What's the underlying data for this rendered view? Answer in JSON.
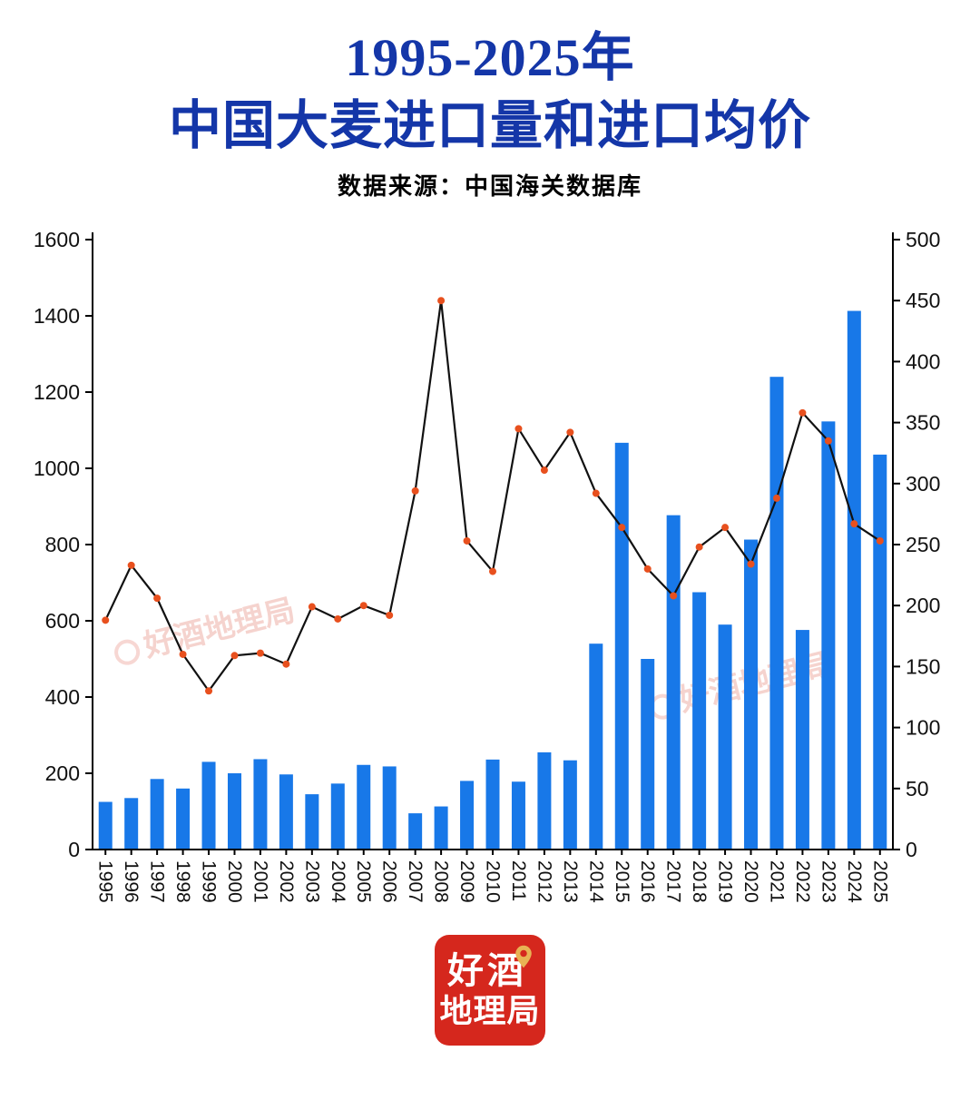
{
  "header": {
    "title_line1": "1995-2025年",
    "title_line2": "中国大麦进口量和进口均价",
    "subtitle": "数据来源：中国海关数据库"
  },
  "watermark": {
    "text": "好酒地理局"
  },
  "logo": {
    "line1": "好酒",
    "line2": "地理局"
  },
  "chart_data": {
    "type": "bar",
    "subtype": "bar+line dual axis",
    "title": "1995-2025年中国大麦进口量和进口均价",
    "categories": [
      "1995",
      "1996",
      "1997",
      "1998",
      "1999",
      "2000",
      "2001",
      "2002",
      "2003",
      "2004",
      "2005",
      "2006",
      "2007",
      "2008",
      "2009",
      "2010",
      "2011",
      "2012",
      "2013",
      "2014",
      "2015",
      "2016",
      "2017",
      "2018",
      "2019",
      "2020",
      "2021",
      "2022",
      "2023",
      "2024",
      "2025"
    ],
    "series": [
      {
        "name": "进口量",
        "type": "bar",
        "axis": "left",
        "color": "#1878E8",
        "values": [
          125,
          135,
          185,
          160,
          230,
          200,
          237,
          197,
          145,
          173,
          222,
          218,
          95,
          113,
          180,
          236,
          178,
          255,
          234,
          540,
          1067,
          500,
          877,
          675,
          590,
          813,
          1240,
          576,
          1123,
          1413,
          1036
        ]
      },
      {
        "name": "进口均价",
        "type": "line",
        "axis": "right",
        "color": "#111111",
        "marker_color": "#E8501E",
        "values": [
          188,
          233,
          206,
          160,
          130,
          159,
          161,
          152,
          199,
          189,
          200,
          192,
          294,
          450,
          253,
          228,
          345,
          311,
          342,
          292,
          264,
          230,
          208,
          248,
          264,
          234,
          288,
          358,
          335,
          267,
          253
        ]
      }
    ],
    "left_axis": {
      "min": 0,
      "max": 1600,
      "step": 200
    },
    "right_axis": {
      "min": 0,
      "max": 500,
      "step": 50
    },
    "grid": false,
    "legend": "none"
  }
}
